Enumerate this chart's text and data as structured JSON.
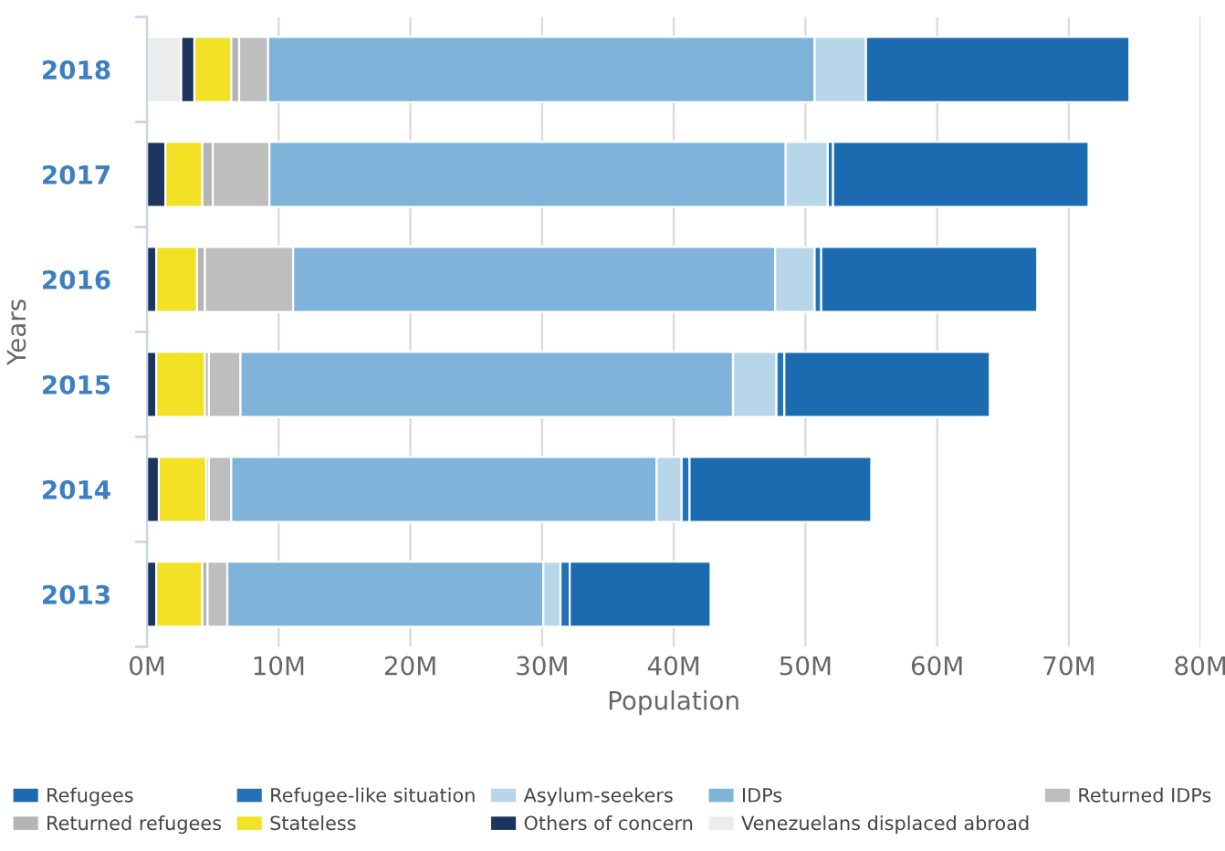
{
  "chart_data": {
    "type": "bar",
    "orientation": "horizontal",
    "stacked": true,
    "ylabel": "Years",
    "xlabel": "Population",
    "categories": [
      "2018",
      "2017",
      "2016",
      "2015",
      "2014",
      "2013"
    ],
    "series": [
      {
        "name": "Venezuelans displaced abroad",
        "color": "#ececec",
        "values": [
          2.6,
          0,
          0,
          0,
          0,
          0
        ]
      },
      {
        "name": "Others of concern",
        "color": "#1b355f",
        "values": [
          1.0,
          1.4,
          0.7,
          0.7,
          0.9,
          0.7
        ]
      },
      {
        "name": "Stateless",
        "color": "#f2e125",
        "values": [
          2.8,
          2.8,
          3.1,
          3.7,
          3.6,
          3.5
        ]
      },
      {
        "name": "Returned refugees",
        "color": "#b4b4b4",
        "values": [
          0.6,
          0.8,
          0.6,
          0.3,
          0.2,
          0.4
        ]
      },
      {
        "name": "Returned IDPs",
        "color": "#bebebe",
        "values": [
          2.2,
          4.3,
          6.7,
          2.4,
          1.7,
          1.5
        ]
      },
      {
        "name": "IDPs",
        "color": "#7fb3da",
        "values": [
          41.5,
          39.2,
          36.6,
          37.4,
          32.3,
          24.0
        ]
      },
      {
        "name": "Asylum-seekers",
        "color": "#b8d6ea",
        "values": [
          3.9,
          3.2,
          3.0,
          3.3,
          1.9,
          1.3
        ]
      },
      {
        "name": "Refugee-like situation",
        "color": "#2372b8",
        "values": [
          0,
          0.4,
          0.5,
          0.6,
          0.6,
          0.7
        ]
      },
      {
        "name": "Refugees",
        "color": "#1c6bb0",
        "values": [
          20.0,
          19.4,
          16.4,
          15.6,
          13.8,
          10.7
        ]
      }
    ],
    "xlim": [
      0,
      80
    ],
    "xticks": [
      {
        "value": 0,
        "label": "0M"
      },
      {
        "value": 10,
        "label": "10M"
      },
      {
        "value": 20,
        "label": "20M"
      },
      {
        "value": 30,
        "label": "30M"
      },
      {
        "value": 40,
        "label": "40M"
      },
      {
        "value": 50,
        "label": "50M"
      },
      {
        "value": 60,
        "label": "60M"
      },
      {
        "value": 70,
        "label": "70M"
      },
      {
        "value": 80,
        "label": "80M"
      }
    ],
    "grid": "x",
    "legend": "bottom"
  }
}
